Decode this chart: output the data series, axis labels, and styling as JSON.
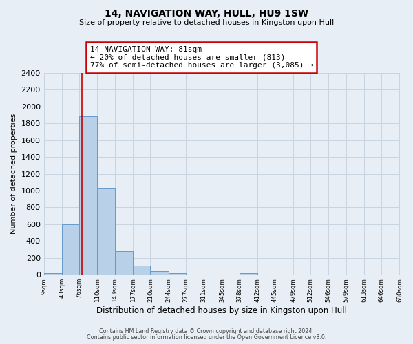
{
  "title": "14, NAVIGATION WAY, HULL, HU9 1SW",
  "subtitle": "Size of property relative to detached houses in Kingston upon Hull",
  "xlabel": "Distribution of detached houses by size in Kingston upon Hull",
  "ylabel": "Number of detached properties",
  "bin_edges": [
    9,
    43,
    76,
    110,
    143,
    177,
    210,
    244,
    277,
    311,
    345,
    378,
    412,
    445,
    479,
    512,
    546,
    579,
    613,
    646,
    680
  ],
  "bin_counts": [
    20,
    600,
    1880,
    1030,
    280,
    110,
    45,
    20,
    0,
    0,
    0,
    20,
    0,
    0,
    0,
    0,
    0,
    0,
    0,
    0
  ],
  "bar_color": "#b8d0e8",
  "bar_edgecolor": "#6699cc",
  "bar_linewidth": 0.7,
  "vline_x": 81,
  "vline_color": "#cc0000",
  "vline_linewidth": 1.2,
  "annotation_text": "14 NAVIGATION WAY: 81sqm\n← 20% of detached houses are smaller (813)\n77% of semi-detached houses are larger (3,085) →",
  "annotation_box_edgecolor": "#cc0000",
  "annotation_box_facecolor": "white",
  "ylim": [
    0,
    2400
  ],
  "yticks": [
    0,
    200,
    400,
    600,
    800,
    1000,
    1200,
    1400,
    1600,
    1800,
    2000,
    2200,
    2400
  ],
  "background_color": "#e8eef5",
  "grid_color": "#c8d4e0",
  "footer_line1": "Contains HM Land Registry data © Crown copyright and database right 2024.",
  "footer_line2": "Contains public sector information licensed under the Open Government Licence v3.0."
}
